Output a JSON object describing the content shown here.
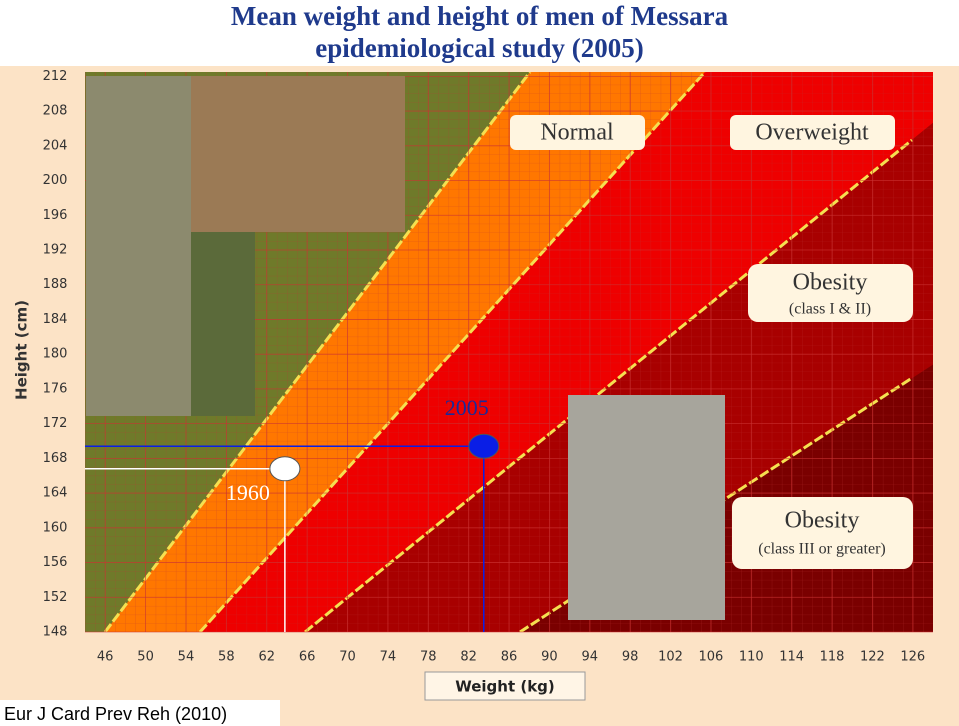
{
  "chart_data": {
    "type": "scatter",
    "title": "Mean weight and height of men of Messara epidemiological study (2005)",
    "x_label": "Weight (kg)",
    "y_label": "Height (cm)",
    "source": "Eur J Card Prev Reh (2010)",
    "xlim": [
      44,
      128
    ],
    "ylim": [
      148,
      212.5
    ],
    "xticks": [
      46,
      50,
      54,
      58,
      62,
      66,
      70,
      74,
      78,
      82,
      86,
      90,
      94,
      98,
      102,
      106,
      110,
      114,
      118,
      122,
      126
    ],
    "yticks": [
      148,
      152,
      156,
      160,
      164,
      168,
      172,
      176,
      180,
      184,
      188,
      192,
      196,
      200,
      204,
      208,
      212
    ],
    "grid": true,
    "zones": [
      {
        "title": "Normal"
      },
      {
        "title": "Overweight"
      },
      {
        "title": "Obesity",
        "subtitle": "(class I & II)"
      },
      {
        "title": "Obesity",
        "subtitle": "(class III or greater)"
      }
    ],
    "series": [
      {
        "name": "1960",
        "color": "#ffffff",
        "x": [
          63.8
        ],
        "values": [
          166.8
        ]
      },
      {
        "name": "2005",
        "color": "#0a1ee6",
        "x": [
          83.5
        ],
        "values": [
          169.4
        ]
      }
    ]
  }
}
